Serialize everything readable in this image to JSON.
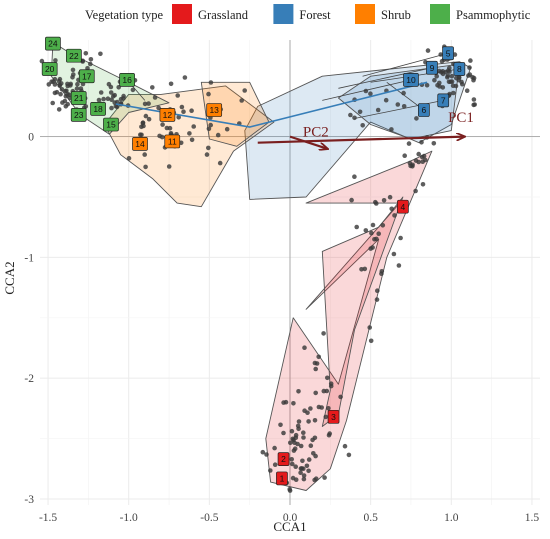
{
  "chart_data": {
    "type": "scatter",
    "xlabel": "CCA1",
    "ylabel": "CCA2",
    "xlim": [
      -1.55,
      1.55
    ],
    "ylim": [
      -3.05,
      0.8
    ],
    "x_ticks": [
      "-1.5",
      "-1.0",
      "-0.5",
      "0.0",
      "0.5",
      "1.0",
      "1.5"
    ],
    "x_tick_values": [
      -1.5,
      -1.0,
      -0.5,
      0.0,
      0.5,
      1.0,
      1.5
    ],
    "y_ticks": [
      "0",
      "-1",
      "-2",
      "-3"
    ],
    "y_tick_values": [
      0,
      -1,
      -2,
      -3
    ],
    "grid": true,
    "reference_lines": {
      "x": 0,
      "y": 0
    },
    "legend": {
      "title": "Vegetation type",
      "placement": "top",
      "entries": [
        {
          "name": "Grassland",
          "color": "#e41a1c"
        },
        {
          "name": "Forest",
          "color": "#377eb8"
        },
        {
          "name": "Shrub",
          "color": "#ff7f00"
        },
        {
          "name": "Psammophytic",
          "color": "#4daf4a"
        }
      ]
    },
    "groups": [
      {
        "id": "1",
        "type": "Grassland",
        "x": -0.05,
        "y": -2.83
      },
      {
        "id": "2",
        "type": "Grassland",
        "x": -0.04,
        "y": -2.67
      },
      {
        "id": "3",
        "type": "Grassland",
        "x": 0.27,
        "y": -2.32
      },
      {
        "id": "4",
        "type": "Grassland",
        "x": 0.7,
        "y": -0.58
      },
      {
        "id": "5",
        "type": "Forest",
        "x": 0.98,
        "y": 0.69
      },
      {
        "id": "6",
        "type": "Forest",
        "x": 0.83,
        "y": 0.22
      },
      {
        "id": "7",
        "type": "Forest",
        "x": 0.95,
        "y": 0.3
      },
      {
        "id": "8",
        "type": "Forest",
        "x": 1.05,
        "y": 0.56
      },
      {
        "id": "9",
        "type": "Forest",
        "x": 0.88,
        "y": 0.57
      },
      {
        "id": "10",
        "type": "Forest",
        "x": 0.75,
        "y": 0.47
      },
      {
        "id": "11",
        "type": "Shrub",
        "x": -0.73,
        "y": -0.04
      },
      {
        "id": "12",
        "type": "Shrub",
        "x": -0.76,
        "y": 0.18
      },
      {
        "id": "13",
        "type": "Shrub",
        "x": -0.47,
        "y": 0.22
      },
      {
        "id": "14",
        "type": "Shrub",
        "x": -0.93,
        "y": -0.06
      },
      {
        "id": "15",
        "type": "Psammophytic",
        "x": -1.11,
        "y": 0.1
      },
      {
        "id": "16",
        "type": "Psammophytic",
        "x": -1.01,
        "y": 0.47
      },
      {
        "id": "17",
        "type": "Psammophytic",
        "x": -1.26,
        "y": 0.5
      },
      {
        "id": "18",
        "type": "Psammophytic",
        "x": -1.19,
        "y": 0.23
      },
      {
        "id": "20",
        "type": "Psammophytic",
        "x": -1.49,
        "y": 0.56
      },
      {
        "id": "21",
        "type": "Psammophytic",
        "x": -1.31,
        "y": 0.32
      },
      {
        "id": "22",
        "type": "Psammophytic",
        "x": -1.34,
        "y": 0.67
      },
      {
        "id": "23",
        "type": "Psammophytic",
        "x": -1.31,
        "y": 0.18
      },
      {
        "id": "24",
        "type": "Psammophytic",
        "x": -1.47,
        "y": 0.77
      }
    ],
    "hulls": [
      {
        "type": "Grassland",
        "points": [
          [
            0.1,
            -0.55
          ],
          [
            0.75,
            -0.2
          ],
          [
            0.88,
            -0.12
          ],
          [
            0.6,
            -1.0
          ],
          [
            0.35,
            -2.35
          ],
          [
            0.25,
            -2.75
          ],
          [
            0.1,
            -2.93
          ],
          [
            -0.12,
            -2.86
          ],
          [
            -0.15,
            -2.5
          ],
          [
            0.02,
            -1.5
          ],
          [
            0.3,
            -2.05
          ],
          [
            0.55,
            -0.85
          ],
          [
            0.1,
            -1.43
          ],
          [
            0.68,
            -0.55
          ]
        ]
      },
      {
        "type": "Grassland",
        "points": [
          [
            0.2,
            -0.95
          ],
          [
            0.55,
            -0.75
          ],
          [
            0.7,
            -0.5
          ],
          [
            0.4,
            -1.6
          ],
          [
            0.3,
            -2.3
          ],
          [
            0.2,
            -2.4
          ],
          [
            0.25,
            -2.1
          ]
        ]
      },
      {
        "type": "Forest",
        "points": [
          [
            -0.2,
            0.25
          ],
          [
            0.2,
            0.5
          ],
          [
            1.05,
            0.62
          ],
          [
            1.12,
            0.57
          ],
          [
            1.0,
            0.1
          ],
          [
            0.8,
            -0.05
          ],
          [
            0.5,
            0.12
          ],
          [
            0.1,
            -0.5
          ],
          [
            -0.25,
            -0.52
          ],
          [
            -0.28,
            0.05
          ]
        ]
      },
      {
        "type": "Forest",
        "points": [
          [
            0.3,
            0.32
          ],
          [
            0.5,
            0.5
          ],
          [
            1.05,
            0.6
          ],
          [
            1.0,
            0.05
          ],
          [
            0.75,
            -0.02
          ],
          [
            0.5,
            0.1
          ]
        ]
      },
      {
        "type": "Shrub",
        "points": [
          [
            -1.0,
            0.35
          ],
          [
            -0.8,
            0.35
          ],
          [
            -0.4,
            0.42
          ],
          [
            -0.1,
            0.12
          ],
          [
            -0.35,
            -0.12
          ],
          [
            -0.55,
            -0.58
          ],
          [
            -0.7,
            -0.55
          ],
          [
            -0.85,
            -0.35
          ],
          [
            -1.05,
            -0.15
          ],
          [
            -1.15,
            0.1
          ]
        ]
      },
      {
        "type": "Shrub",
        "points": [
          [
            -0.55,
            0.45
          ],
          [
            -0.25,
            0.45
          ],
          [
            -0.13,
            0.12
          ],
          [
            -0.33,
            -0.08
          ],
          [
            -0.5,
            -0.02
          ]
        ]
      },
      {
        "type": "Psammophytic",
        "points": [
          [
            -1.47,
            0.78
          ],
          [
            -1.35,
            0.68
          ],
          [
            -1.0,
            0.45
          ],
          [
            -0.75,
            0.28
          ],
          [
            -1.0,
            0.2
          ],
          [
            -1.12,
            0.02
          ],
          [
            -1.3,
            0.18
          ],
          [
            -1.48,
            0.5
          ]
        ]
      }
    ],
    "connectors": [
      [
        [
          -1.01,
          0.47
        ],
        [
          -0.9,
          0.3
        ]
      ],
      [
        [
          0.75,
          0.47
        ],
        [
          0.2,
          0.3
        ]
      ],
      [
        [
          0.88,
          0.57
        ],
        [
          0.3,
          0.4
        ]
      ],
      [
        [
          0.98,
          0.69
        ],
        [
          0.45,
          0.5
        ]
      ],
      [
        [
          1.05,
          0.56
        ],
        [
          0.5,
          0.45
        ]
      ],
      [
        [
          0.95,
          0.3
        ],
        [
          0.4,
          0.15
        ]
      ],
      [
        [
          0.83,
          0.22
        ],
        [
          0.6,
          0.45
        ]
      ]
    ],
    "blue_line": [
      [
        -1.08,
        0.27
      ],
      [
        -0.25,
        0.08
      ],
      [
        0.85,
        0.45
      ]
    ],
    "arrows": [
      {
        "label": "PC1",
        "from": [
          -0.2,
          -0.05
        ],
        "to": [
          1.08,
          0.0
        ],
        "label_at": [
          0.98,
          0.12
        ]
      },
      {
        "label": "PC2",
        "from": [
          0.0,
          0.0
        ],
        "to": [
          0.23,
          -0.1
        ],
        "label_at": [
          0.08,
          0.0
        ]
      }
    ],
    "point_seeds": [
      {
        "cx": -1.35,
        "cy": 0.42,
        "sx": 0.1,
        "sy": 0.12,
        "n": 70
      },
      {
        "cx": -1.1,
        "cy": 0.3,
        "sx": 0.1,
        "sy": 0.08,
        "n": 25
      },
      {
        "cx": -0.78,
        "cy": 0.08,
        "sx": 0.15,
        "sy": 0.2,
        "n": 45
      },
      {
        "cx": -0.4,
        "cy": 0.2,
        "sx": 0.12,
        "sy": 0.12,
        "n": 12
      },
      {
        "cx": 1.0,
        "cy": 0.5,
        "sx": 0.08,
        "sy": 0.1,
        "n": 70
      },
      {
        "cx": 0.55,
        "cy": 0.3,
        "sx": 0.12,
        "sy": 0.1,
        "n": 14
      },
      {
        "cx": 0.8,
        "cy": -0.2,
        "sx": 0.05,
        "sy": 0.12,
        "n": 18
      },
      {
        "cx": 0.55,
        "cy": -0.9,
        "sx": 0.08,
        "sy": 0.3,
        "n": 30
      },
      {
        "cx": 0.05,
        "cy": -2.6,
        "sx": 0.1,
        "sy": 0.2,
        "n": 60
      },
      {
        "cx": 0.22,
        "cy": -2.2,
        "sx": 0.07,
        "sy": 0.2,
        "n": 20
      }
    ]
  }
}
